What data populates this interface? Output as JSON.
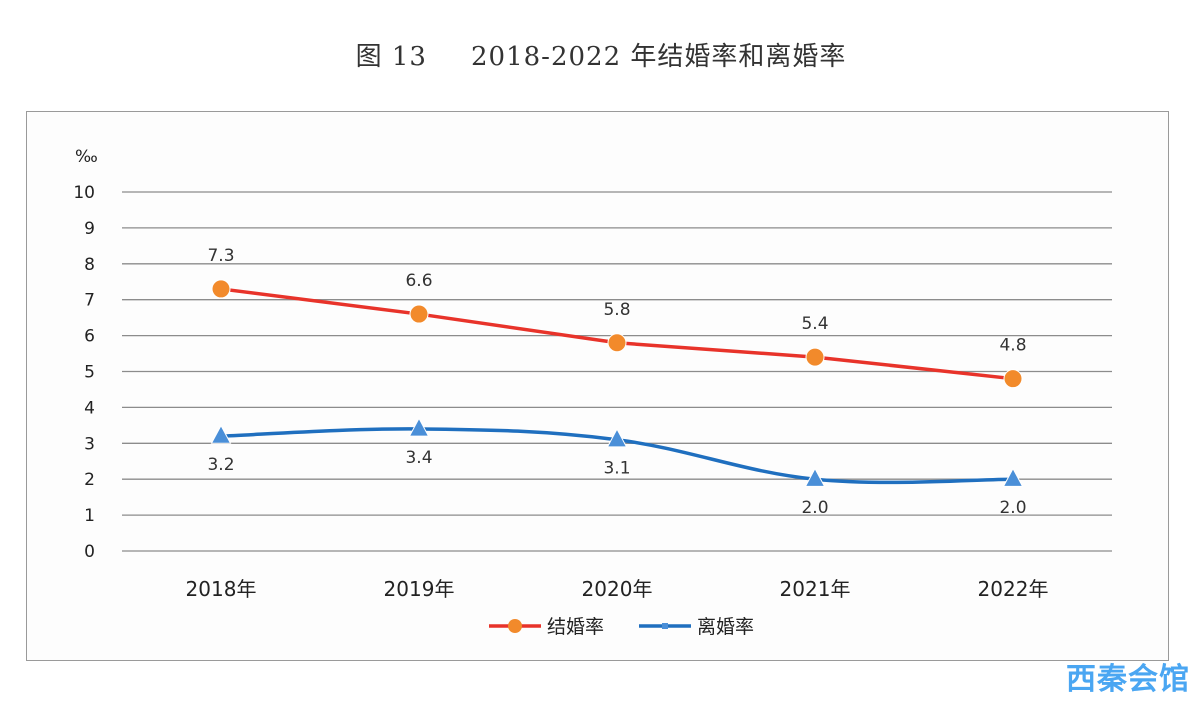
{
  "title": {
    "figure_no": "图 13",
    "text": "2018-2022 年结婚率和离婚率"
  },
  "watermark": "西秦会馆",
  "chart_data": {
    "type": "line",
    "categories": [
      "2018年",
      "2019年",
      "2020年",
      "2021年",
      "2022年"
    ],
    "ylabel": "‰",
    "ylim": [
      0,
      10
    ],
    "yticks": [
      0,
      1,
      2,
      3,
      4,
      5,
      6,
      7,
      8,
      9,
      10
    ],
    "grid": true,
    "legend_position": "bottom",
    "series": [
      {
        "name": "结婚率",
        "values": [
          7.3,
          6.6,
          5.8,
          5.4,
          4.8
        ],
        "labels": [
          "7.3",
          "6.6",
          "5.8",
          "5.4",
          "4.8"
        ],
        "color": "#e8332a",
        "marker_color": "#f28a2b",
        "marker": "circle",
        "label_position": "above"
      },
      {
        "name": "离婚率",
        "values": [
          3.2,
          3.4,
          3.1,
          2.0,
          2.0
        ],
        "labels": [
          "3.2",
          "3.4",
          "3.1",
          "2.0",
          "2.0"
        ],
        "color": "#1f6fbf",
        "marker_color": "#4a8fd8",
        "marker": "triangle",
        "label_position": "below"
      }
    ]
  }
}
